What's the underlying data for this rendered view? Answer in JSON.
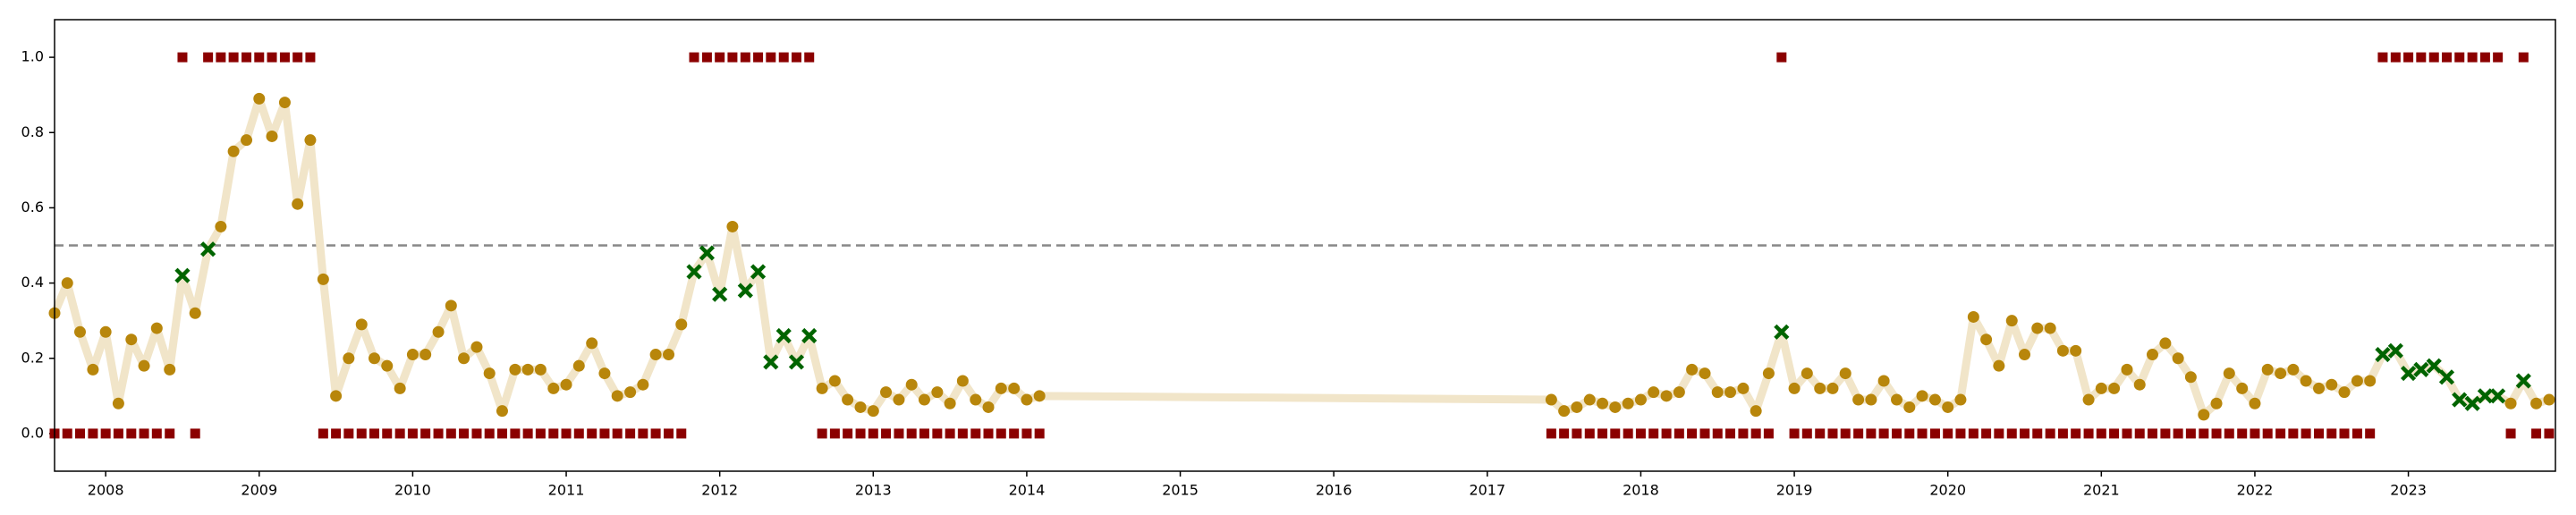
{
  "chart_data": {
    "type": "line",
    "x": [
      2007.667,
      2007.75,
      2007.833,
      2007.917,
      2008,
      2008.083,
      2008.167,
      2008.25,
      2008.333,
      2008.417,
      2008.5,
      2008.583,
      2008.667,
      2008.75,
      2008.833,
      2008.917,
      2009,
      2009.083,
      2009.167,
      2009.25,
      2009.333,
      2009.417,
      2009.5,
      2009.583,
      2009.667,
      2009.75,
      2009.833,
      2009.917,
      2010,
      2010.083,
      2010.167,
      2010.25,
      2010.333,
      2010.417,
      2010.5,
      2010.583,
      2010.667,
      2010.75,
      2010.833,
      2010.917,
      2011,
      2011.083,
      2011.167,
      2011.25,
      2011.333,
      2011.417,
      2011.5,
      2011.583,
      2011.667,
      2011.75,
      2011.833,
      2011.917,
      2012,
      2012.083,
      2012.167,
      2012.25,
      2012.333,
      2012.417,
      2012.5,
      2012.583,
      2012.667,
      2012.75,
      2012.833,
      2012.917,
      2013,
      2013.083,
      2013.167,
      2013.25,
      2013.333,
      2013.417,
      2013.5,
      2013.583,
      2013.667,
      2013.75,
      2013.833,
      2013.917,
      2014,
      2014.083,
      2017.417,
      2017.5,
      2017.583,
      2017.667,
      2017.75,
      2017.833,
      2017.917,
      2018,
      2018.083,
      2018.167,
      2018.25,
      2018.333,
      2018.417,
      2018.5,
      2018.583,
      2018.667,
      2018.75,
      2018.833,
      2018.917,
      2019,
      2019.083,
      2019.167,
      2019.25,
      2019.333,
      2019.417,
      2019.5,
      2019.583,
      2019.667,
      2019.75,
      2019.833,
      2019.917,
      2020,
      2020.083,
      2020.167,
      2020.25,
      2020.333,
      2020.417,
      2020.5,
      2020.583,
      2020.667,
      2020.75,
      2020.833,
      2020.917,
      2021,
      2021.083,
      2021.167,
      2021.25,
      2021.333,
      2021.417,
      2021.5,
      2021.583,
      2021.667,
      2021.75,
      2021.833,
      2021.917,
      2022,
      2022.083,
      2022.167,
      2022.25,
      2022.333,
      2022.417,
      2022.5,
      2022.583,
      2022.667,
      2022.75,
      2022.833,
      2022.917,
      2023,
      2023.083,
      2023.167,
      2023.25,
      2023.333,
      2023.417,
      2023.5,
      2023.583,
      2023.667,
      2023.75,
      2023.833,
      2023.917
    ],
    "values": [
      0.32,
      0.4,
      0.27,
      0.17,
      0.27,
      0.08,
      0.25,
      0.18,
      0.28,
      0.17,
      0.42,
      0.32,
      0.49,
      0.55,
      0.75,
      0.78,
      0.89,
      0.79,
      0.88,
      0.61,
      0.78,
      0.41,
      0.1,
      0.2,
      0.29,
      0.2,
      0.18,
      0.12,
      0.21,
      0.21,
      0.27,
      0.34,
      0.2,
      0.23,
      0.16,
      0.06,
      0.17,
      0.17,
      0.17,
      0.12,
      0.13,
      0.18,
      0.24,
      0.16,
      0.1,
      0.11,
      0.13,
      0.21,
      0.21,
      0.29,
      0.43,
      0.48,
      0.37,
      0.55,
      0.38,
      0.43,
      0.19,
      0.26,
      0.19,
      0.26,
      0.12,
      0.14,
      0.09,
      0.07,
      0.06,
      0.11,
      0.09,
      0.13,
      0.09,
      0.11,
      0.08,
      0.14,
      0.09,
      0.07,
      0.12,
      0.12,
      0.09,
      0.1,
      0.09,
      0.06,
      0.07,
      0.09,
      0.08,
      0.07,
      0.08,
      0.09,
      0.11,
      0.1,
      0.11,
      0.17,
      0.16,
      0.11,
      0.11,
      0.12,
      0.06,
      0.16,
      0.27,
      0.12,
      0.16,
      0.12,
      0.12,
      0.16,
      0.09,
      0.09,
      0.14,
      0.09,
      0.07,
      0.1,
      0.09,
      0.07,
      0.09,
      0.31,
      0.25,
      0.18,
      0.3,
      0.21,
      0.28,
      0.28,
      0.22,
      0.22,
      0.09,
      0.12,
      0.12,
      0.17,
      0.13,
      0.21,
      0.24,
      0.2,
      0.15,
      0.05,
      0.08,
      0.16,
      0.12,
      0.08,
      0.17,
      0.16,
      0.17,
      0.14,
      0.12,
      0.13,
      0.11,
      0.14,
      0.14,
      0.21,
      0.22,
      0.16,
      0.17,
      0.18,
      0.15,
      0.09,
      0.08,
      0.1,
      0.1,
      0.08,
      0.14,
      0.08,
      0.09
    ],
    "labels": [
      0,
      0,
      0,
      0,
      0,
      0,
      0,
      0,
      0,
      0,
      1,
      0,
      1,
      1,
      1,
      1,
      1,
      1,
      1,
      1,
      1,
      0,
      0,
      0,
      0,
      0,
      0,
      0,
      0,
      0,
      0,
      0,
      0,
      0,
      0,
      0,
      0,
      0,
      0,
      0,
      0,
      0,
      0,
      0,
      0,
      0,
      0,
      0,
      0,
      0,
      1,
      1,
      1,
      1,
      1,
      1,
      1,
      1,
      1,
      1,
      0,
      0,
      0,
      0,
      0,
      0,
      0,
      0,
      0,
      0,
      0,
      0,
      0,
      0,
      0,
      0,
      0,
      0,
      0,
      0,
      0,
      0,
      0,
      0,
      0,
      0,
      0,
      0,
      0,
      0,
      0,
      0,
      0,
      0,
      0,
      0,
      1,
      0,
      0,
      0,
      0,
      0,
      0,
      0,
      0,
      0,
      0,
      0,
      0,
      0,
      0,
      0,
      0,
      0,
      0,
      0,
      0,
      0,
      0,
      0,
      0,
      0,
      0,
      0,
      0,
      0,
      0,
      0,
      0,
      0,
      0,
      0,
      0,
      0,
      0,
      0,
      0,
      0,
      0,
      0,
      0,
      0,
      0,
      1,
      1,
      1,
      1,
      1,
      1,
      1,
      1,
      1,
      1,
      0,
      1,
      0,
      0
    ],
    "threshold": 0.5,
    "line_color": "#f1e5c9",
    "correct_color": "#b8860b",
    "incorrect_color": "#006400",
    "label_color": "#8b0000",
    "threshold_color": "#888888",
    "xlim": [
      2007.667,
      2023.958
    ],
    "ylim": [
      -0.1,
      1.1
    ],
    "xticks": [
      2008,
      2009,
      2010,
      2011,
      2012,
      2013,
      2014,
      2015,
      2016,
      2017,
      2018,
      2019,
      2020,
      2021,
      2022,
      2023
    ],
    "yticks": [
      {
        "value": 0,
        "label": "0.0"
      },
      {
        "value": 0.2,
        "label": "0.2"
      },
      {
        "value": 0.4,
        "label": "0.4"
      },
      {
        "value": 0.6,
        "label": "0.6"
      },
      {
        "value": 0.8,
        "label": "0.8"
      },
      {
        "value": 1,
        "label": "1.0"
      }
    ]
  }
}
